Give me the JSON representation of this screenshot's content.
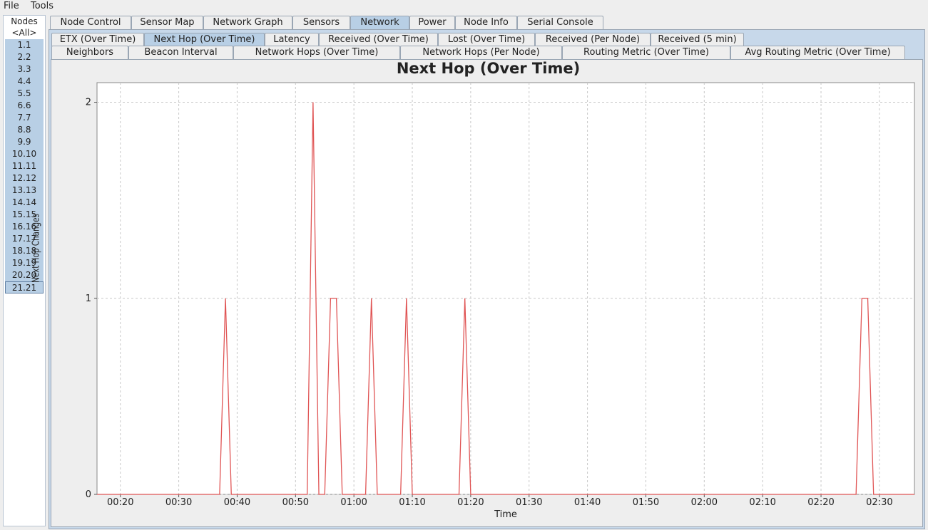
{
  "menu": {
    "file": "File",
    "tools": "Tools"
  },
  "nodes": {
    "header": "Nodes",
    "all": "<All>",
    "items": [
      "1.1",
      "2.2",
      "3.3",
      "4.4",
      "5.5",
      "6.6",
      "7.7",
      "8.8",
      "9.9",
      "10.10",
      "11.11",
      "12.12",
      "13.13",
      "14.14",
      "15.15",
      "16.16",
      "17.17",
      "18.18",
      "19.19",
      "20.20",
      "21.21"
    ],
    "selected": "21.21"
  },
  "top_tabs": [
    "Node Control",
    "Sensor Map",
    "Network Graph",
    "Sensors",
    "Network",
    "Power",
    "Node Info",
    "Serial Console"
  ],
  "top_active": "Network",
  "sub_tabs_row1": [
    "ETX (Over Time)",
    "Next Hop (Over Time)",
    "Latency",
    "Received (Over Time)",
    "Lost (Over Time)",
    "Received (Per Node)",
    "Received (5 min)"
  ],
  "sub_tabs_row2": [
    "Neighbors",
    "Beacon Interval",
    "Network Hops (Over Time)",
    "Network Hops (Per Node)",
    "Routing Metric (Over Time)",
    "Avg Routing Metric (Over Time)"
  ],
  "sub_active": "Next Hop (Over Time)",
  "colors": {
    "line": "#e05555",
    "tab_active": "#b8cfe5"
  },
  "chart_data": {
    "type": "line",
    "title": "Next Hop (Over Time)",
    "xlabel": "Time",
    "ylabel": "Next Hop Changes",
    "x_ticks": [
      "00:20",
      "00:30",
      "00:40",
      "00:50",
      "01:00",
      "01:10",
      "01:20",
      "01:30",
      "01:40",
      "01:50",
      "02:00",
      "02:10",
      "02:20",
      "02:30"
    ],
    "y_ticks": [
      "0",
      "1",
      "2"
    ],
    "xlim": [
      "00:16",
      "02:36"
    ],
    "ylim": [
      0,
      2.1
    ],
    "grid": true,
    "series": [
      {
        "x": [
          "00:16",
          "00:37",
          "00:38",
          "00:39",
          "00:52",
          "00:53",
          "00:54",
          "00:55",
          "00:56",
          "00:57",
          "00:58",
          "01:02",
          "01:03",
          "01:04",
          "01:08",
          "01:09",
          "01:10",
          "01:18",
          "01:19",
          "01:20",
          "02:26",
          "02:27",
          "02:28",
          "02:29",
          "02:36"
        ],
        "y": [
          0,
          0,
          1,
          0,
          0,
          2,
          0,
          0,
          1,
          1,
          0,
          0,
          1,
          0,
          0,
          1,
          0,
          0,
          1,
          0,
          0,
          1,
          1,
          0,
          0
        ]
      }
    ]
  }
}
